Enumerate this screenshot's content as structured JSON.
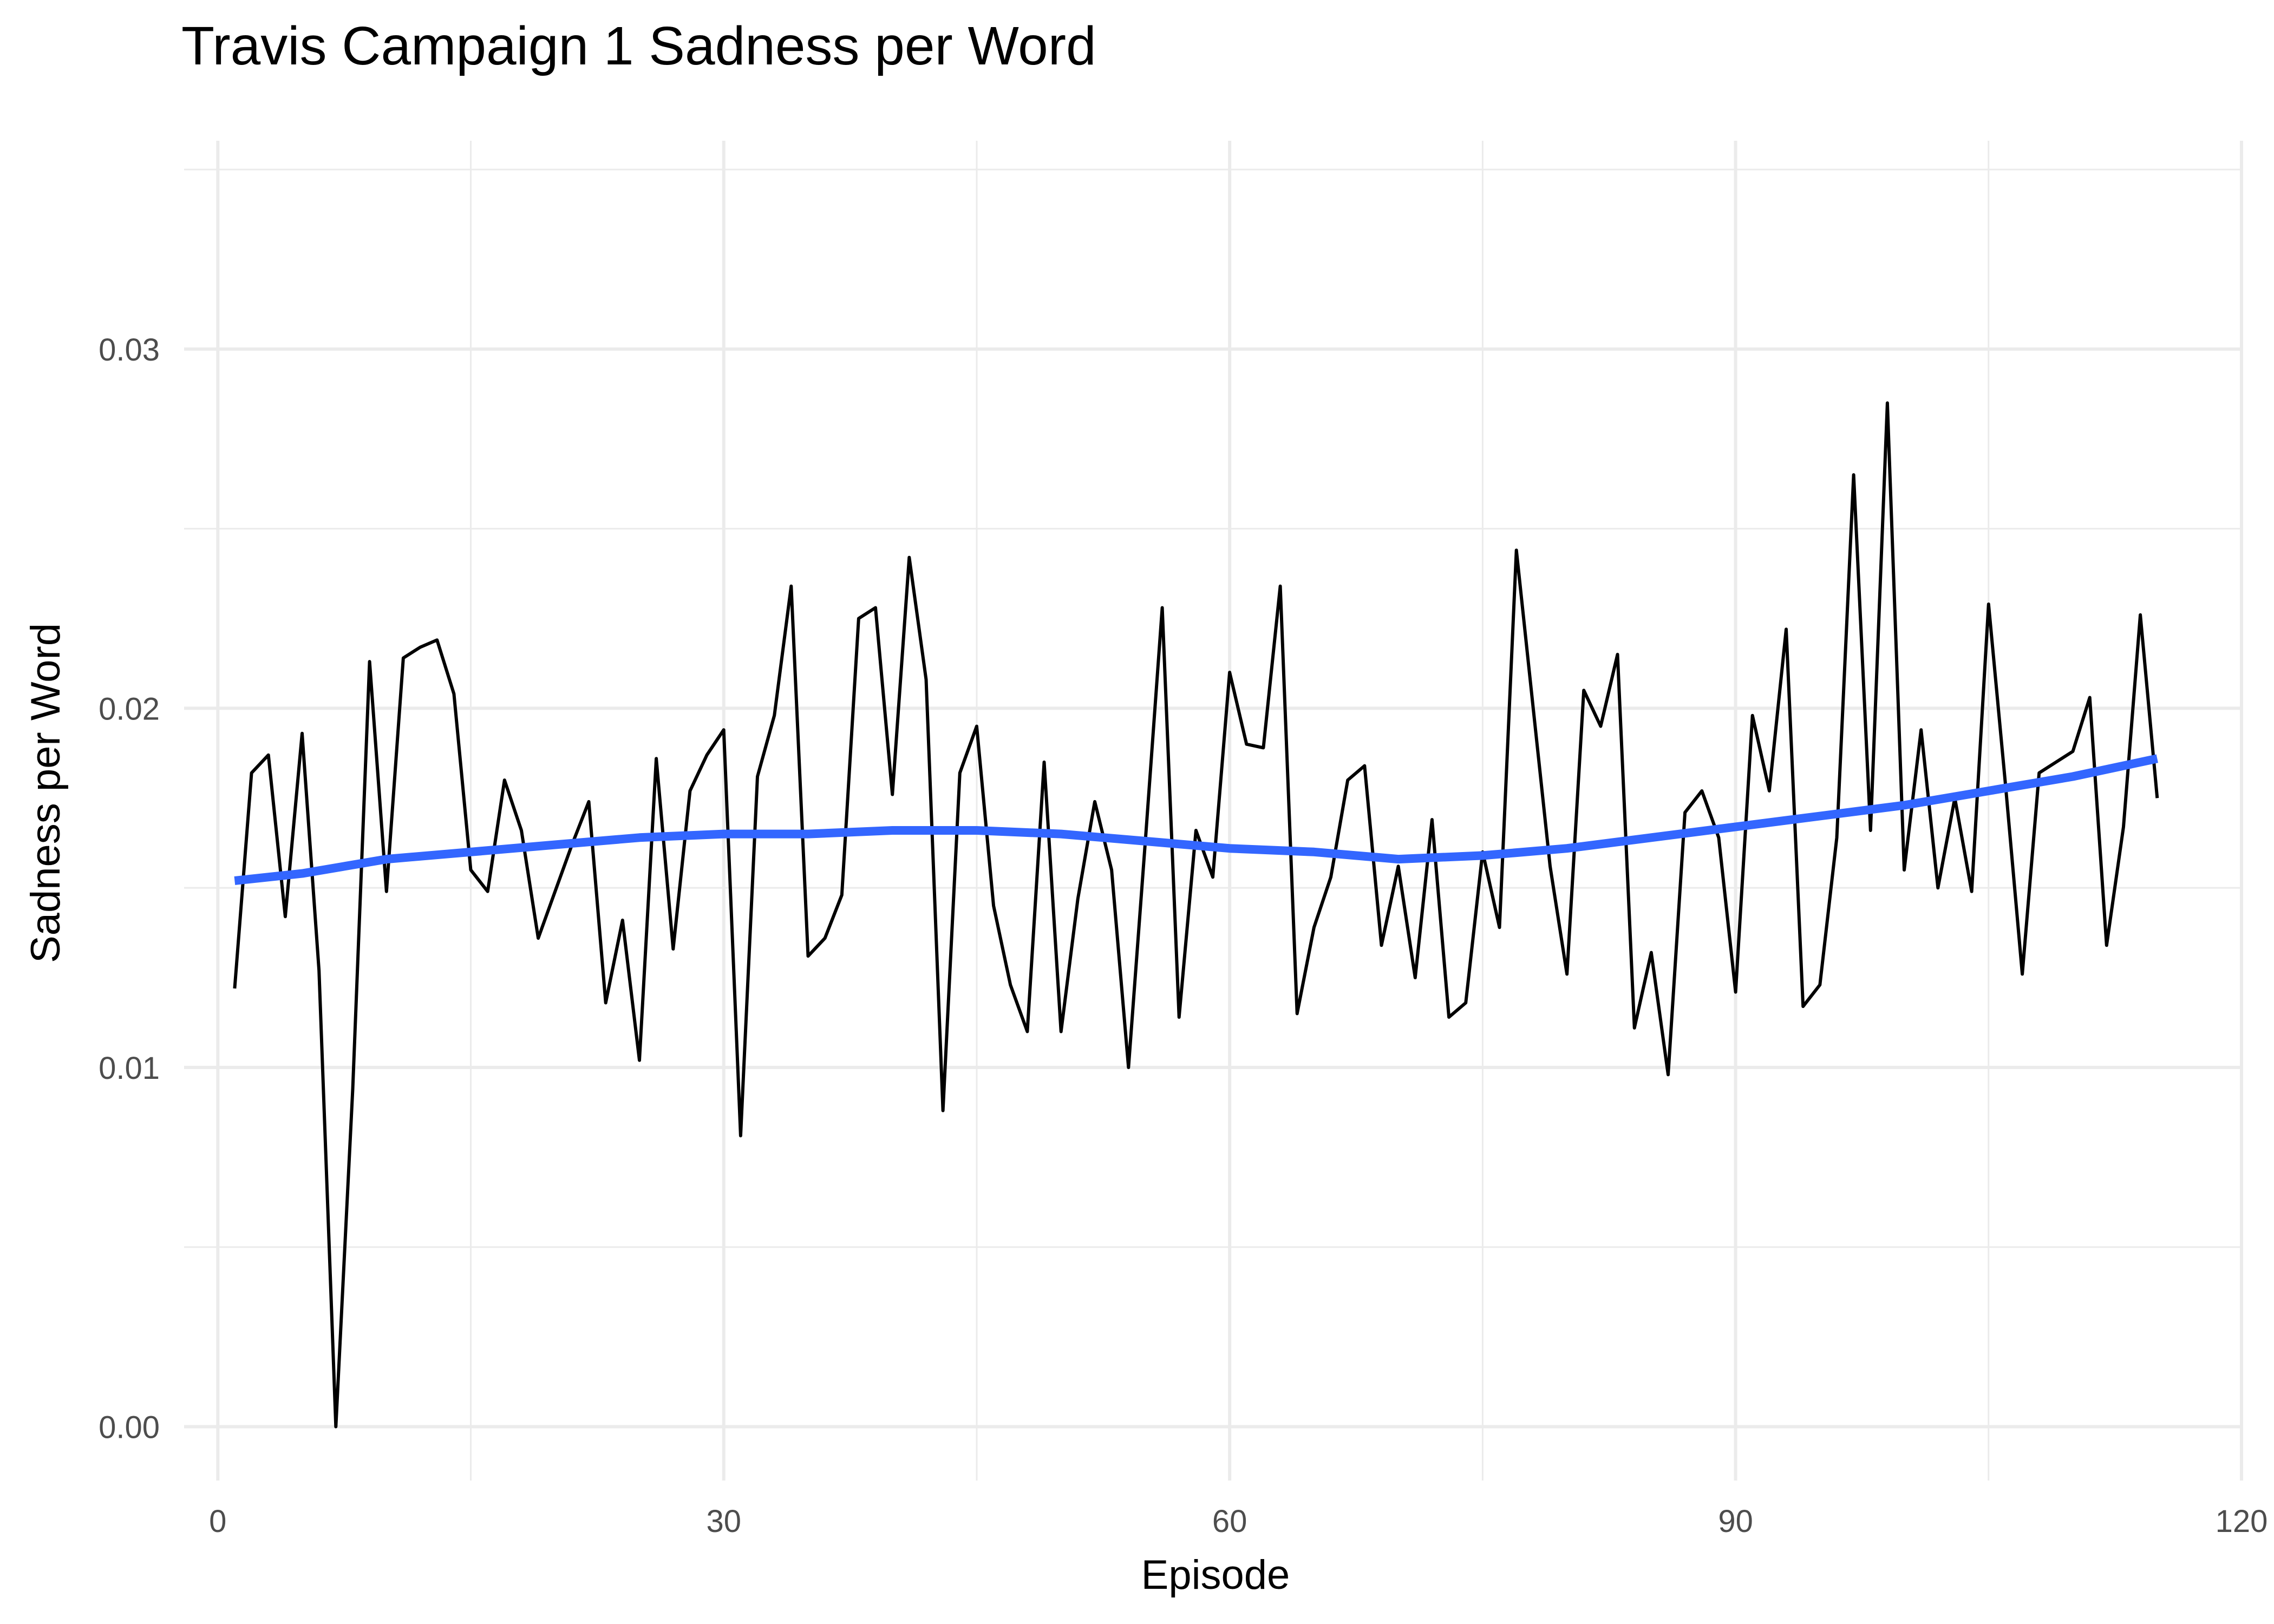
{
  "chart_data": {
    "type": "line",
    "title": "Travis Campaign 1 Sadness per Word",
    "xlabel": "Episode",
    "ylabel": "Sadness per Word",
    "xlim": [
      -2,
      120
    ],
    "ylim": [
      -0.0015,
      0.0358
    ],
    "x_ticks": [
      0,
      30,
      60,
      90,
      120
    ],
    "y_ticks": [
      0.0,
      0.01,
      0.02,
      0.03
    ],
    "x_tick_labels": [
      "0",
      "30",
      "60",
      "90",
      "120"
    ],
    "y_tick_labels": [
      "0.00",
      "0.01",
      "0.02",
      "0.03"
    ],
    "x_minor": [
      15,
      45,
      75,
      105
    ],
    "y_minor": [
      0.005,
      0.015,
      0.025,
      0.035
    ],
    "grid": true,
    "legend": "none",
    "series": [
      {
        "color": "#000000",
        "x": [
          1,
          2,
          3,
          4,
          5,
          6,
          7,
          8,
          9,
          10,
          11,
          12,
          13,
          14,
          15,
          16,
          17,
          18,
          19,
          20,
          21,
          22,
          23,
          24,
          25,
          26,
          27,
          28,
          29,
          30,
          31,
          32,
          33,
          34,
          35,
          36,
          37,
          38,
          39,
          40,
          41,
          42,
          43,
          44,
          45,
          46,
          47,
          48,
          49,
          50,
          51,
          52,
          53,
          54,
          55,
          56,
          57,
          58,
          59,
          60,
          61,
          62,
          63,
          64,
          65,
          66,
          67,
          68,
          69,
          70,
          71,
          72,
          73,
          74,
          75,
          76,
          77,
          78,
          79,
          80,
          81,
          82,
          83,
          84,
          85,
          86,
          87,
          88,
          89,
          90,
          91,
          92,
          93,
          94,
          95,
          96,
          97,
          98,
          99,
          100,
          101,
          102,
          103,
          104,
          105,
          106,
          107,
          108,
          109,
          110,
          111,
          112,
          113,
          114,
          115
        ],
        "values": [
          0.0122,
          0.0182,
          0.0187,
          0.0142,
          0.0193,
          0.0127,
          0.0,
          0.0094,
          0.0213,
          0.0149,
          0.0214,
          0.0217,
          0.0219,
          0.0204,
          0.0155,
          0.0149,
          0.018,
          0.0166,
          0.0136,
          0.0149,
          0.0162,
          0.0174,
          0.0118,
          0.0141,
          0.0102,
          0.0186,
          0.0133,
          0.0177,
          0.0187,
          0.0194,
          0.0081,
          0.0181,
          0.0198,
          0.0234,
          0.0131,
          0.0136,
          0.0148,
          0.0225,
          0.0228,
          0.0176,
          0.0242,
          0.0208,
          0.0088,
          0.0182,
          0.0195,
          0.0145,
          0.0123,
          0.011,
          0.0185,
          0.011,
          0.0147,
          0.0174,
          0.0155,
          0.01,
          0.0163,
          0.0228,
          0.0114,
          0.0166,
          0.0153,
          0.021,
          0.019,
          0.0189,
          0.0234,
          0.0115,
          0.0139,
          0.0153,
          0.018,
          0.0184,
          0.0134,
          0.0156,
          0.0125,
          0.0169,
          0.0114,
          0.0118,
          0.016,
          0.0139,
          0.0244,
          0.02,
          0.0156,
          0.0126,
          0.0205,
          0.0195,
          0.0215,
          0.0111,
          0.0132,
          0.0098,
          0.0171,
          0.0177,
          0.0164,
          0.0121,
          0.0198,
          0.0177,
          0.0222,
          0.0117,
          0.0123,
          0.0164,
          0.0265,
          0.0166,
          0.0285,
          0.0155,
          0.0194,
          0.015,
          0.0175,
          0.0149,
          0.0229,
          0.0179,
          0.0126,
          0.0182,
          0.0185,
          0.0188,
          0.0203,
          0.0134,
          0.0167,
          0.0226,
          0.0175
        ]
      },
      {
        "color": "#3366ff",
        "type": "smooth",
        "x": [
          1,
          5,
          10,
          15,
          20,
          25,
          30,
          35,
          40,
          45,
          50,
          55,
          60,
          65,
          70,
          75,
          80,
          85,
          90,
          95,
          100,
          105,
          110,
          115
        ],
        "values": [
          0.0152,
          0.0154,
          0.0158,
          0.016,
          0.0162,
          0.0164,
          0.0165,
          0.0165,
          0.0166,
          0.0166,
          0.0165,
          0.0163,
          0.0161,
          0.016,
          0.0158,
          0.0159,
          0.0161,
          0.0164,
          0.0167,
          0.017,
          0.0173,
          0.0177,
          0.0181,
          0.0186
        ]
      }
    ]
  }
}
